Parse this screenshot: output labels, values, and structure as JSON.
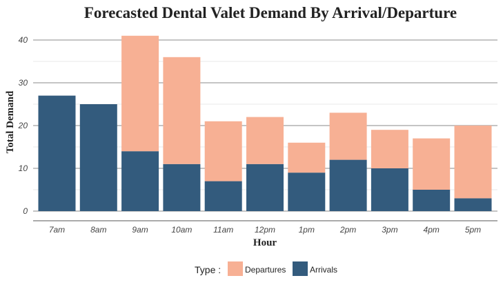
{
  "chart_data": {
    "type": "bar",
    "stacked": true,
    "title": "Forecasted Dental Valet Demand By Arrival/Departure",
    "xlabel": "Hour",
    "ylabel": "Total Demand",
    "categories": [
      "7am",
      "8am",
      "9am",
      "10am",
      "11am",
      "12pm",
      "1pm",
      "2pm",
      "3pm",
      "4pm",
      "5pm"
    ],
    "series": [
      {
        "name": "Arrivals",
        "color": "#335b7d",
        "values": [
          27,
          25,
          14,
          11,
          7,
          11,
          9,
          12,
          10,
          5,
          3
        ]
      },
      {
        "name": "Departures",
        "color": "#f7b094",
        "values": [
          0,
          0,
          27,
          25,
          14,
          11,
          7,
          11,
          9,
          12,
          17
        ]
      }
    ],
    "ylim": [
      0,
      43
    ],
    "yticks": [
      0,
      10,
      20,
      30,
      40
    ],
    "grid": true,
    "legend": {
      "title": "Type :",
      "position": "bottom",
      "order": [
        "Departures",
        "Arrivals"
      ]
    }
  }
}
